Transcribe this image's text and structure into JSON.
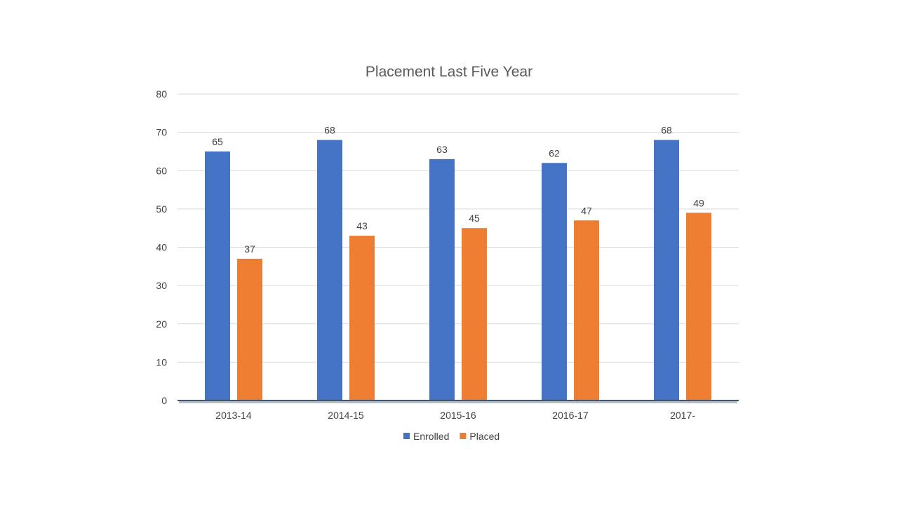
{
  "chart_data": {
    "type": "bar",
    "title": "Placement Last Five Year",
    "xlabel": "",
    "ylabel": "",
    "categories": [
      "2013-14",
      "2014-15",
      "2015-16",
      "2016-17",
      "2017-"
    ],
    "series": [
      {
        "name": "Enrolled",
        "values": [
          65,
          68,
          63,
          62,
          68
        ],
        "color": "#4472C4"
      },
      {
        "name": "Placed",
        "values": [
          37,
          43,
          45,
          47,
          49
        ],
        "color": "#ED7D31"
      }
    ],
    "ylim": [
      0,
      80
    ],
    "yticks": [
      0,
      10,
      20,
      30,
      40,
      50,
      60,
      70,
      80
    ],
    "grid": true,
    "legend": "bottom",
    "data_labels": true
  }
}
